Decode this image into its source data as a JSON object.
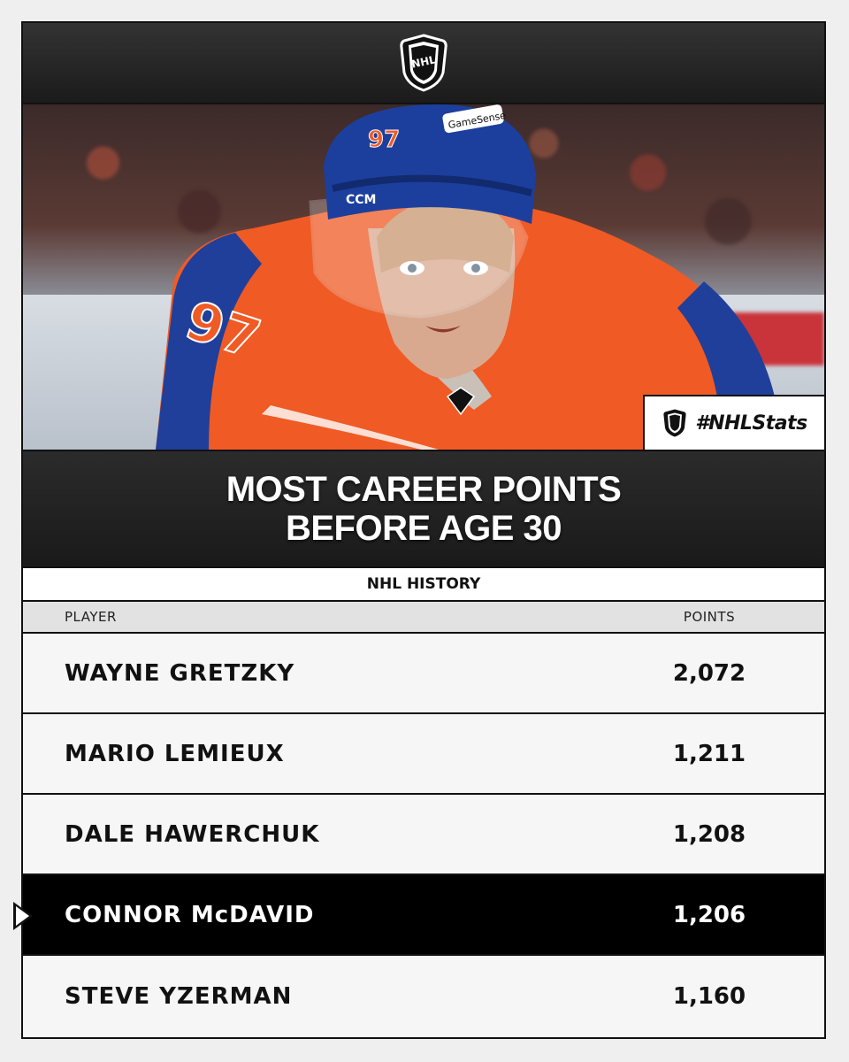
{
  "brand": {
    "logo_icon": "nhl-shield-icon",
    "logo_text": "NHL",
    "hashtag": "#NHLStats"
  },
  "title": "MOST CAREER POINTS BEFORE AGE 30",
  "subtitle": "NHL HISTORY",
  "table": {
    "headers": {
      "player": "PLAYER",
      "points": "POINTS"
    },
    "rows": [
      {
        "player": "WAYNE GRETZKY",
        "points": "2,072"
      },
      {
        "player": "MARIO LEMIEUX",
        "points": "1,211"
      },
      {
        "player": "DALE HAWERCHUK",
        "points": "1,208"
      },
      {
        "player": "CONNOR McDAVID",
        "points": "1,206",
        "highlighted": true
      },
      {
        "player": "STEVE YZERMAN",
        "points": "1,160"
      }
    ]
  },
  "photo": {
    "jersey_number": "97",
    "helmet_brand": "CCM",
    "helmet_sponsor": "GameSense",
    "colors": {
      "jersey": "#f05a24",
      "helmet": "#1c3f9e",
      "trim": "#1f3f9a"
    }
  }
}
